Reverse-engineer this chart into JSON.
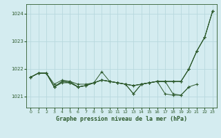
{
  "title": "Graphe pression niveau de la mer (hPa)",
  "background_color": "#d4ecf0",
  "grid_color": "#b8d8de",
  "line_color": "#2d5a2d",
  "marker_color": "#2d5a2d",
  "xlim": [
    -0.5,
    23.5
  ],
  "ylim": [
    1020.6,
    1024.35
  ],
  "yticks": [
    1021,
    1022,
    1023,
    1024
  ],
  "xticks": [
    0,
    1,
    2,
    3,
    4,
    5,
    6,
    7,
    8,
    9,
    10,
    11,
    12,
    13,
    14,
    15,
    16,
    17,
    18,
    19,
    20,
    21,
    22,
    23
  ],
  "series": [
    [
      1021.7,
      1021.85,
      1021.85,
      1021.45,
      1021.6,
      1021.55,
      1021.45,
      1021.45,
      1021.5,
      1021.6,
      1021.55,
      1021.5,
      1021.45,
      1021.4,
      1021.45,
      1021.5,
      1021.55,
      1021.55,
      1021.55,
      1021.55,
      1022.0,
      1022.65,
      1023.15,
      1024.1
    ],
    [
      1021.7,
      1021.85,
      1021.85,
      1021.35,
      1021.55,
      1021.5,
      1021.35,
      1021.4,
      1021.5,
      1021.9,
      1021.55,
      1021.5,
      1021.45,
      1021.1,
      1021.45,
      1021.5,
      1021.55,
      1021.55,
      1021.1,
      1021.05,
      1021.35,
      1021.45,
      null,
      null
    ],
    [
      1021.7,
      1021.85,
      1021.85,
      1021.35,
      1021.55,
      1021.5,
      1021.35,
      1021.4,
      1021.5,
      1021.6,
      1021.55,
      1021.5,
      1021.45,
      1021.1,
      1021.45,
      1021.5,
      1021.55,
      1021.1,
      1021.05,
      1021.05,
      1021.35,
      null,
      null,
      null
    ],
    [
      1021.7,
      1021.85,
      1021.85,
      1021.35,
      1021.55,
      1021.55,
      1021.35,
      1021.4,
      1021.5,
      1021.6,
      1021.55,
      1021.5,
      1021.45,
      1021.4,
      1021.45,
      1021.5,
      1021.55,
      1021.55,
      1021.55,
      1021.55,
      1022.0,
      1022.65,
      1023.15,
      1024.1
    ],
    [
      1021.7,
      1021.85,
      1021.85,
      1021.35,
      1021.5,
      1021.5,
      1021.35,
      1021.4,
      1021.5,
      1021.6,
      1021.55,
      1021.5,
      1021.45,
      1021.4,
      1021.45,
      1021.5,
      1021.55,
      1021.55,
      1021.55,
      1021.55,
      1022.0,
      1022.65,
      1023.15,
      1024.1
    ]
  ]
}
